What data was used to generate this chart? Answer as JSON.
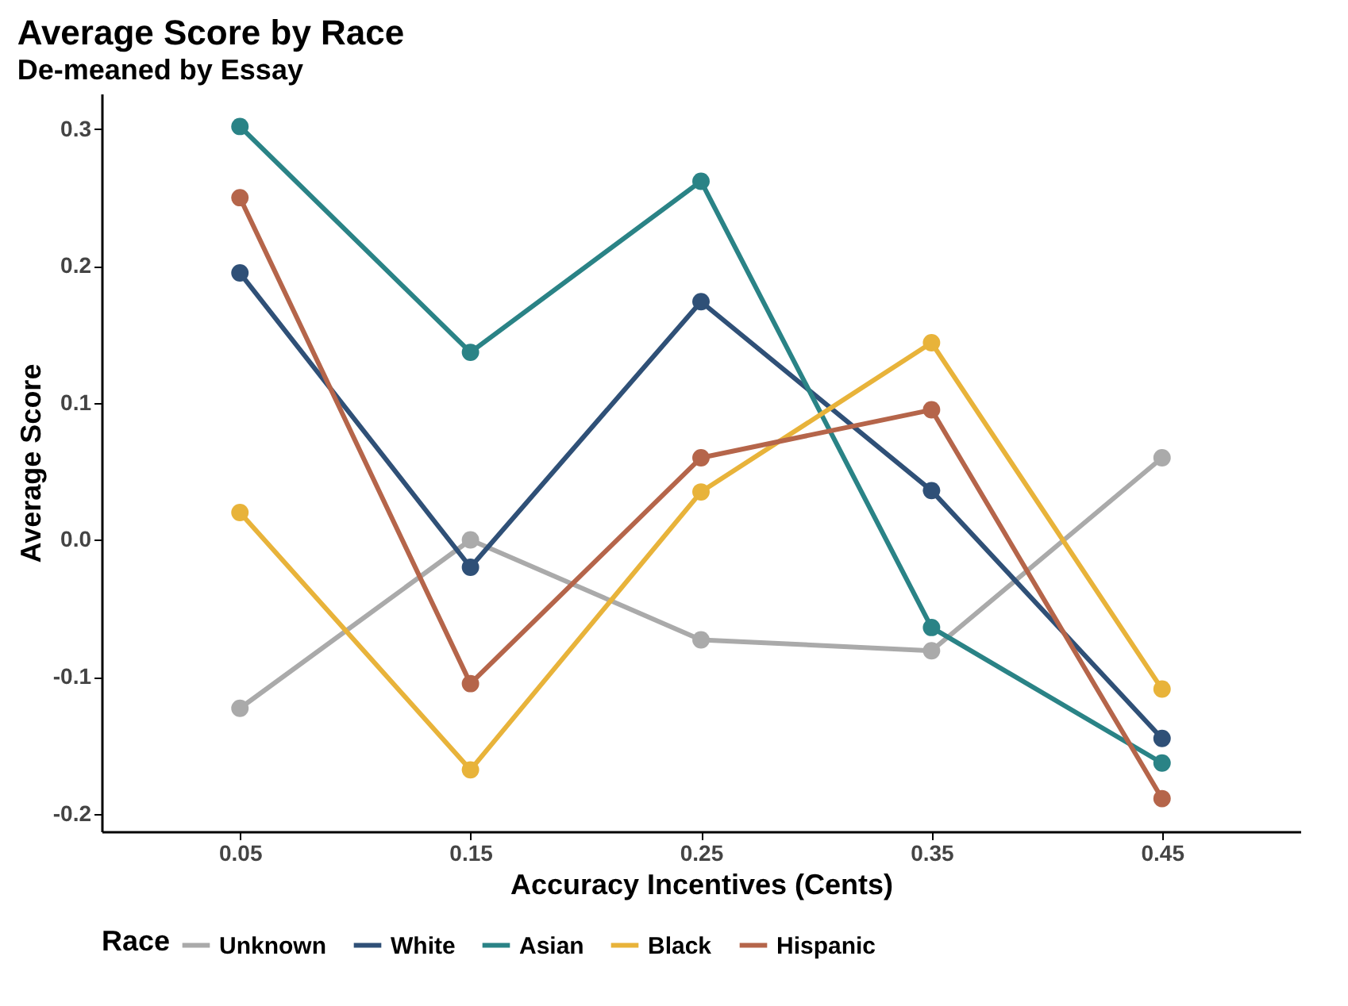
{
  "chart_data": {
    "type": "line",
    "title": "Average Score by Race",
    "subtitle": "De-meaned by Essay",
    "xlabel": "Accuracy Incentives (Cents)",
    "ylabel": "Average Score",
    "legend_title": "Race",
    "categories": [
      "0.05",
      "0.15",
      "0.25",
      "0.35",
      "0.45"
    ],
    "series": [
      {
        "name": "Unknown",
        "color": "#aaaaaa",
        "values": [
          -0.123,
          0.0,
          -0.073,
          -0.081,
          0.06
        ]
      },
      {
        "name": "White",
        "color": "#2f5077",
        "values": [
          0.195,
          -0.02,
          0.174,
          0.036,
          -0.145
        ]
      },
      {
        "name": "Asian",
        "color": "#2a8386",
        "values": [
          0.302,
          0.137,
          0.262,
          -0.064,
          -0.163
        ]
      },
      {
        "name": "Black",
        "color": "#e8b33a",
        "values": [
          0.02,
          -0.168,
          0.035,
          0.144,
          -0.109
        ]
      },
      {
        "name": "Hispanic",
        "color": "#b5654a",
        "values": [
          0.25,
          -0.105,
          0.06,
          0.095,
          -0.189
        ]
      }
    ],
    "ylim": [
      -0.213,
      0.326
    ],
    "yticks": [
      -0.2,
      -0.1,
      {
        "value": 0,
        "label": "0.0"
      },
      0.1,
      0.2,
      0.3
    ],
    "grid": false,
    "legend": "bottom",
    "marker": "circle",
    "line_style": "solid"
  }
}
